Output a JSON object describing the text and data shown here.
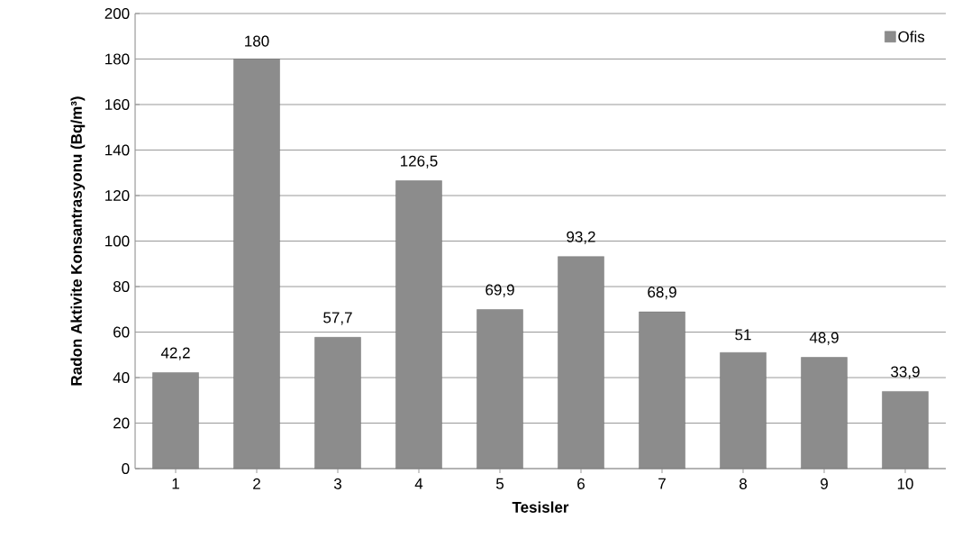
{
  "chart_data": {
    "type": "bar",
    "xlabel": "Tesisler",
    "ylabel": "Radon Aktivite Konsantrasyonu (Bq/m³)",
    "categories": [
      "1",
      "2",
      "3",
      "4",
      "5",
      "6",
      "7",
      "8",
      "9",
      "10"
    ],
    "series": [
      {
        "name": "Ofis",
        "color": "#8c8c8c",
        "values": [
          42.2,
          180,
          57.7,
          126.5,
          69.9,
          93.2,
          68.9,
          51,
          48.9,
          33.9
        ],
        "value_labels": [
          "42,2",
          "180",
          "57,7",
          "126,5",
          "69,9",
          "93,2",
          "68,9",
          "51",
          "48,9",
          "33,9"
        ]
      }
    ],
    "ylim": [
      0,
      200
    ],
    "yticks": [
      0,
      20,
      40,
      60,
      80,
      100,
      120,
      140,
      160,
      180,
      200
    ],
    "grid": "y",
    "legend": "top right"
  }
}
